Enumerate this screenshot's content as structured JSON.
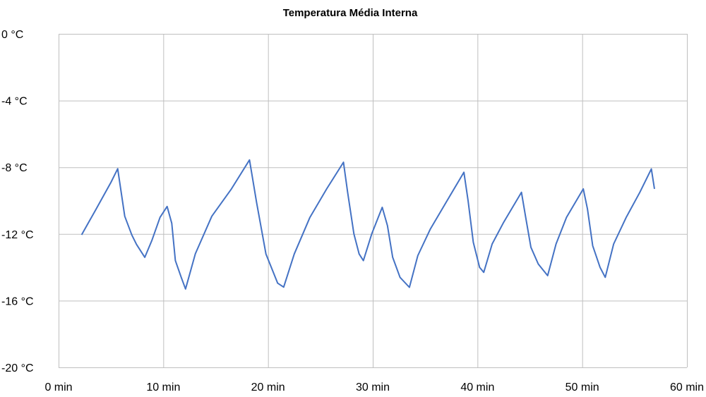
{
  "chart_data": {
    "type": "line",
    "title": "Temperatura Média Interna",
    "xlabel": "",
    "ylabel": "",
    "xlim": [
      0,
      60
    ],
    "ylim": [
      -20,
      0
    ],
    "x_ticks": [
      0,
      10,
      20,
      30,
      40,
      50,
      60
    ],
    "x_tick_labels": [
      "0 min",
      "10 min",
      "20 min",
      "30 min",
      "40 min",
      "50 min",
      "60 min"
    ],
    "y_ticks": [
      0,
      -4,
      -8,
      -12,
      -16,
      -20
    ],
    "y_tick_labels": [
      "0 °C",
      "-4 °C",
      "-8 °C",
      "-12 °C",
      "-16 °C",
      "-20 °C"
    ],
    "grid": true,
    "legend": "none",
    "colors": {
      "series": "#4472C4",
      "grid": "#BFBFBF"
    },
    "series": [
      {
        "name": "Temperatura Média Interna",
        "x": [
          2.2,
          3.5,
          5.0,
          5.64,
          6.32,
          6.99,
          7.44,
          8.23,
          8.9,
          9.69,
          10.36,
          10.81,
          11.15,
          11.71,
          12.12,
          13.06,
          14.63,
          16.5,
          18.23,
          18.9,
          19.8,
          20.92,
          21.49,
          22.5,
          24.0,
          25.6,
          27.2,
          27.6,
          28.2,
          28.7,
          29.1,
          29.9,
          30.9,
          31.4,
          31.9,
          32.6,
          33.5,
          34.3,
          35.5,
          37.1,
          38.7,
          39.1,
          39.6,
          40.2,
          40.6,
          41.4,
          42.5,
          44.2,
          44.6,
          45.1,
          45.8,
          46.7,
          47.5,
          48.5,
          50.1,
          50.5,
          51.0,
          51.7,
          52.2,
          53.0,
          54.2,
          55.5,
          56.6,
          56.9
        ],
        "y": [
          -12.05,
          -10.6,
          -8.9,
          -8.09,
          -10.94,
          -12.06,
          -12.63,
          -13.4,
          -12.4,
          -11.0,
          -10.35,
          -11.36,
          -13.6,
          -14.6,
          -15.3,
          -13.19,
          -10.94,
          -9.3,
          -7.56,
          -10.1,
          -13.2,
          -14.95,
          -15.19,
          -13.2,
          -11.0,
          -9.3,
          -7.7,
          -9.5,
          -12.0,
          -13.2,
          -13.6,
          -12.0,
          -10.4,
          -11.5,
          -13.4,
          -14.6,
          -15.2,
          -13.3,
          -11.7,
          -10.0,
          -8.3,
          -10.0,
          -12.5,
          -14.0,
          -14.3,
          -12.6,
          -11.3,
          -9.5,
          -11.0,
          -12.8,
          -13.8,
          -14.5,
          -12.6,
          -11.0,
          -9.3,
          -10.5,
          -12.7,
          -14.0,
          -14.6,
          -12.6,
          -11.0,
          -9.5,
          -8.1,
          -9.3
        ]
      }
    ]
  }
}
